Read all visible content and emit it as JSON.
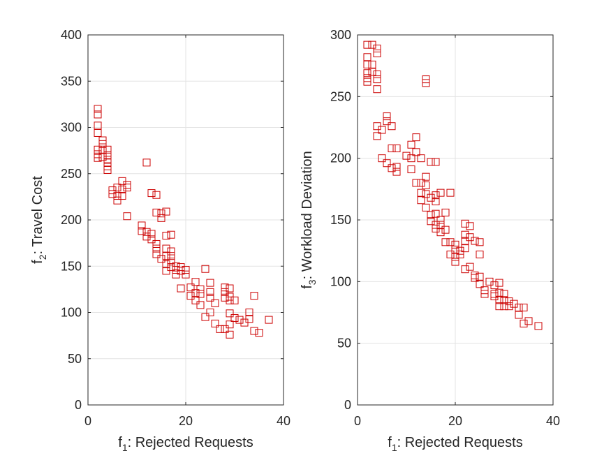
{
  "figure": {
    "background": "#ffffff"
  },
  "chart_data": [
    {
      "type": "scatter",
      "xlabel": {
        "main": "f",
        "sub": "1",
        "rest": ": Rejected Requests"
      },
      "ylabel": {
        "main": "f",
        "sub": "2",
        "rest": ": Travel Cost"
      },
      "xlim": [
        0,
        40
      ],
      "ylim": [
        0,
        400
      ],
      "xticks": [
        0,
        20,
        40
      ],
      "yticks": [
        0,
        50,
        100,
        150,
        200,
        250,
        300,
        350,
        400
      ],
      "grid": true,
      "marker": "square",
      "marker_color": "#cc0000",
      "points": [
        [
          2,
          320
        ],
        [
          2,
          314
        ],
        [
          2,
          302
        ],
        [
          2,
          294
        ],
        [
          2,
          276
        ],
        [
          2,
          271
        ],
        [
          2,
          267
        ],
        [
          3,
          286
        ],
        [
          3,
          282
        ],
        [
          3,
          276
        ],
        [
          3,
          268
        ],
        [
          4,
          276
        ],
        [
          4,
          270
        ],
        [
          4,
          265
        ],
        [
          4,
          262
        ],
        [
          4,
          258
        ],
        [
          4,
          254
        ],
        [
          5,
          232
        ],
        [
          5,
          228
        ],
        [
          6,
          235
        ],
        [
          6,
          226
        ],
        [
          6,
          221
        ],
        [
          7,
          242
        ],
        [
          7,
          233
        ],
        [
          7,
          226
        ],
        [
          8,
          238
        ],
        [
          8,
          235
        ],
        [
          8,
          204
        ],
        [
          11,
          194
        ],
        [
          11,
          188
        ],
        [
          12,
          262
        ],
        [
          12,
          187
        ],
        [
          12,
          182
        ],
        [
          13,
          229
        ],
        [
          13,
          185
        ],
        [
          13,
          179
        ],
        [
          14,
          227
        ],
        [
          14,
          208
        ],
        [
          14,
          174
        ],
        [
          14,
          169
        ],
        [
          14,
          163
        ],
        [
          15,
          207
        ],
        [
          15,
          202
        ],
        [
          15,
          158
        ],
        [
          16,
          209
        ],
        [
          16,
          183
        ],
        [
          16,
          169
        ],
        [
          16,
          161
        ],
        [
          16,
          152
        ],
        [
          16,
          145
        ],
        [
          17,
          184
        ],
        [
          17,
          166
        ],
        [
          17,
          161
        ],
        [
          17,
          155
        ],
        [
          17,
          149
        ],
        [
          18,
          150
        ],
        [
          18,
          146
        ],
        [
          18,
          141
        ],
        [
          19,
          149
        ],
        [
          19,
          145
        ],
        [
          19,
          126
        ],
        [
          20,
          146
        ],
        [
          20,
          141
        ],
        [
          21,
          127
        ],
        [
          21,
          118
        ],
        [
          22,
          133
        ],
        [
          22,
          121
        ],
        [
          22,
          113
        ],
        [
          23,
          125
        ],
        [
          23,
          120
        ],
        [
          23,
          108
        ],
        [
          24,
          147
        ],
        [
          24,
          95
        ],
        [
          25,
          132
        ],
        [
          25,
          122
        ],
        [
          25,
          116
        ],
        [
          25,
          100
        ],
        [
          26,
          110
        ],
        [
          26,
          88
        ],
        [
          27,
          82
        ],
        [
          28,
          127
        ],
        [
          28,
          122
        ],
        [
          28,
          116
        ],
        [
          28,
          82
        ],
        [
          29,
          126
        ],
        [
          29,
          117
        ],
        [
          29,
          113
        ],
        [
          29,
          99
        ],
        [
          29,
          87
        ],
        [
          29,
          76
        ],
        [
          30,
          113
        ],
        [
          30,
          94
        ],
        [
          31,
          92
        ],
        [
          32,
          89
        ],
        [
          33,
          100
        ],
        [
          33,
          93
        ],
        [
          34,
          80
        ],
        [
          34,
          118
        ],
        [
          35,
          78
        ],
        [
          37,
          92
        ]
      ]
    },
    {
      "type": "scatter",
      "xlabel": {
        "main": "f",
        "sub": "1",
        "rest": ": Rejected Requests"
      },
      "ylabel": {
        "main": "f",
        "sub": "3",
        "rest": ": Workload Deviation"
      },
      "xlim": [
        0,
        40
      ],
      "ylim": [
        0,
        300
      ],
      "xticks": [
        0,
        20,
        40
      ],
      "yticks": [
        0,
        50,
        100,
        150,
        200,
        250,
        300
      ],
      "grid": true,
      "marker": "square",
      "marker_color": "#cc0000",
      "points": [
        [
          2,
          292
        ],
        [
          2,
          282
        ],
        [
          2,
          276
        ],
        [
          2,
          269
        ],
        [
          2,
          265
        ],
        [
          2,
          262
        ],
        [
          3,
          292
        ],
        [
          3,
          276
        ],
        [
          3,
          270
        ],
        [
          4,
          289
        ],
        [
          4,
          285
        ],
        [
          4,
          268
        ],
        [
          4,
          264
        ],
        [
          4,
          256
        ],
        [
          4,
          226
        ],
        [
          4,
          218
        ],
        [
          5,
          223
        ],
        [
          5,
          200
        ],
        [
          6,
          234
        ],
        [
          6,
          230
        ],
        [
          6,
          196
        ],
        [
          7,
          226
        ],
        [
          7,
          208
        ],
        [
          7,
          192
        ],
        [
          8,
          208
        ],
        [
          8,
          193
        ],
        [
          8,
          189
        ],
        [
          10,
          202
        ],
        [
          11,
          211
        ],
        [
          11,
          200
        ],
        [
          11,
          191
        ],
        [
          12,
          217
        ],
        [
          12,
          205
        ],
        [
          12,
          180
        ],
        [
          13,
          200
        ],
        [
          13,
          180
        ],
        [
          13,
          172
        ],
        [
          13,
          166
        ],
        [
          14,
          264
        ],
        [
          14,
          261
        ],
        [
          14,
          185
        ],
        [
          14,
          178
        ],
        [
          14,
          171
        ],
        [
          14,
          160
        ],
        [
          15,
          197
        ],
        [
          15,
          168
        ],
        [
          15,
          154
        ],
        [
          15,
          149
        ],
        [
          16,
          197
        ],
        [
          16,
          170
        ],
        [
          16,
          165
        ],
        [
          16,
          155
        ],
        [
          16,
          146
        ],
        [
          16,
          143
        ],
        [
          17,
          172
        ],
        [
          17,
          150
        ],
        [
          17,
          146
        ],
        [
          17,
          140
        ],
        [
          18,
          156
        ],
        [
          18,
          142
        ],
        [
          18,
          132
        ],
        [
          19,
          172
        ],
        [
          19,
          132
        ],
        [
          19,
          122
        ],
        [
          20,
          130
        ],
        [
          20,
          126
        ],
        [
          20,
          120
        ],
        [
          20,
          116
        ],
        [
          21,
          125
        ],
        [
          21,
          122
        ],
        [
          22,
          147
        ],
        [
          22,
          138
        ],
        [
          22,
          133
        ],
        [
          22,
          127
        ],
        [
          22,
          110
        ],
        [
          23,
          145
        ],
        [
          23,
          136
        ],
        [
          23,
          112
        ],
        [
          24,
          133
        ],
        [
          24,
          105
        ],
        [
          24,
          103
        ],
        [
          25,
          132
        ],
        [
          25,
          122
        ],
        [
          25,
          104
        ],
        [
          25,
          98
        ],
        [
          26,
          93
        ],
        [
          26,
          90
        ],
        [
          27,
          100
        ],
        [
          28,
          97
        ],
        [
          28,
          90
        ],
        [
          28,
          88
        ],
        [
          29,
          99
        ],
        [
          29,
          91
        ],
        [
          29,
          85
        ],
        [
          29,
          80
        ],
        [
          30,
          90
        ],
        [
          30,
          85
        ],
        [
          30,
          80
        ],
        [
          31,
          80
        ],
        [
          31,
          84
        ],
        [
          32,
          82
        ],
        [
          33,
          79
        ],
        [
          33,
          73
        ],
        [
          34,
          79
        ],
        [
          34,
          66
        ],
        [
          35,
          68
        ],
        [
          37,
          64
        ]
      ]
    }
  ]
}
